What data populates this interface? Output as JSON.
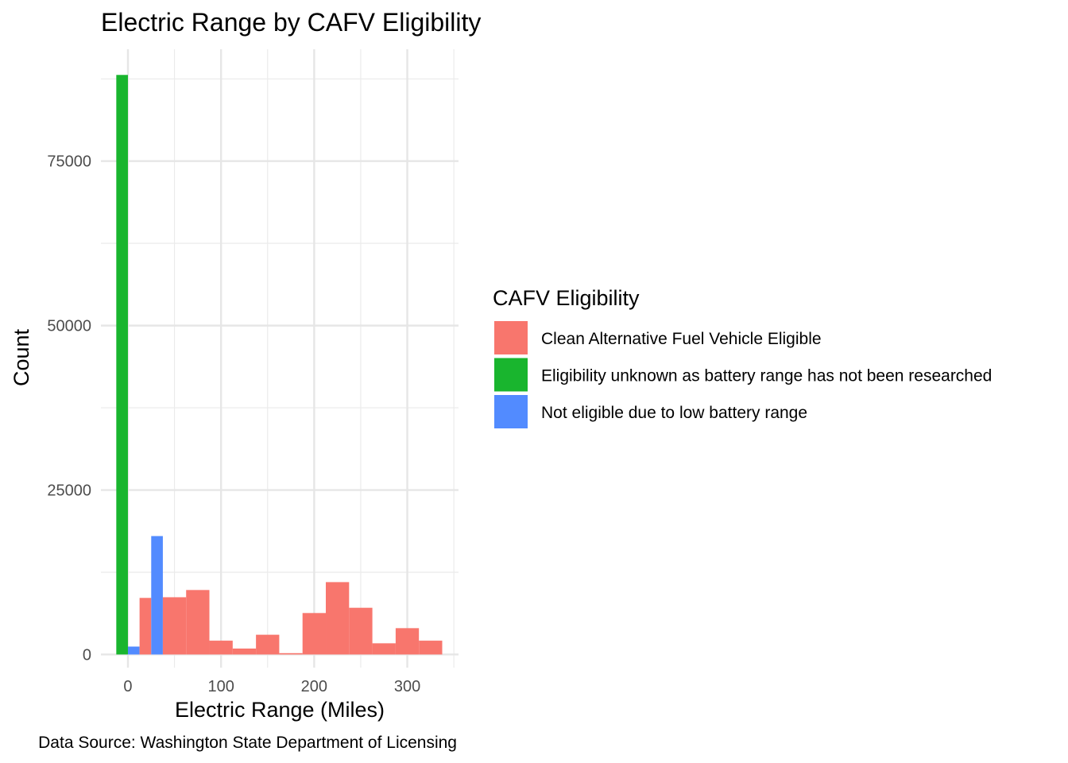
{
  "chart_data": {
    "type": "bar",
    "title": "Electric Range by CAFV Eligibility",
    "xlabel": "Electric Range (Miles)",
    "ylabel": "Count",
    "caption": "Data Source: Washington State Department of Licensing",
    "xlim": [
      -29,
      355
    ],
    "ylim": [
      -2000,
      92000
    ],
    "x_ticks": [
      0,
      100,
      200,
      300
    ],
    "x_minor_ticks": [
      50,
      150,
      250,
      350
    ],
    "y_ticks": [
      0,
      25000,
      50000,
      75000
    ],
    "y_minor_ticks": [
      12500,
      37500,
      62500,
      87500
    ],
    "x_tick_labels": [
      "0",
      "100",
      "200",
      "300"
    ],
    "y_tick_labels": [
      "0",
      "25000",
      "50000",
      "75000"
    ],
    "grid": true,
    "legend_title": "CAFV Eligibility",
    "legend_position": "right",
    "bin_width": 25,
    "series": [
      {
        "name": "Clean Alternative Fuel Vehicle Eligible",
        "color": "#F8766D",
        "bins": [
          {
            "x": 25,
            "value": 8600
          },
          {
            "x": 50,
            "value": 8700
          },
          {
            "x": 75,
            "value": 9800
          },
          {
            "x": 100,
            "value": 2100
          },
          {
            "x": 125,
            "value": 900
          },
          {
            "x": 150,
            "value": 3000
          },
          {
            "x": 175,
            "value": 200
          },
          {
            "x": 200,
            "value": 6300
          },
          {
            "x": 225,
            "value": 11000
          },
          {
            "x": 250,
            "value": 7100
          },
          {
            "x": 275,
            "value": 1700
          },
          {
            "x": 300,
            "value": 4000
          },
          {
            "x": 325,
            "value": 2100
          }
        ]
      },
      {
        "name": "Eligibility unknown as battery range has not been researched",
        "color": "#19B52E",
        "bins": [
          {
            "x": 0,
            "value": 88100
          }
        ]
      },
      {
        "name": "Not eligible due to low battery range",
        "color": "#528BFF",
        "bins": [
          {
            "x": 0,
            "value": 1200
          },
          {
            "x": 25,
            "value": 18000
          }
        ]
      }
    ]
  }
}
